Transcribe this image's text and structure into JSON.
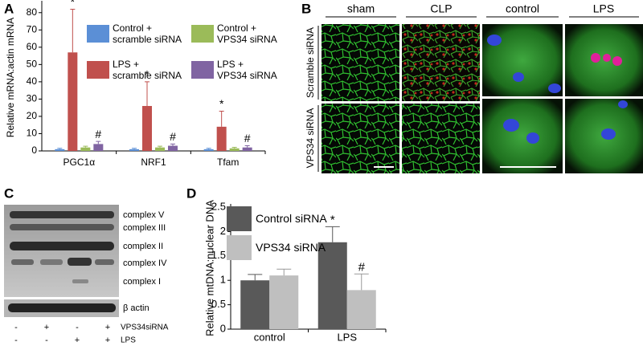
{
  "panel_labels": [
    "A",
    "B",
    "C",
    "D"
  ],
  "chart_data": [
    {
      "type": "bar",
      "ylabel": "Relative mRNA:actin mRNA",
      "categories": [
        "PGC1α",
        "NRF1",
        "Tfam"
      ],
      "ylim": [
        0,
        85
      ],
      "yticks": [
        0,
        10,
        20,
        30,
        40,
        50,
        60,
        70,
        80
      ],
      "series": [
        {
          "name": "Control +\nscramble siRNA",
          "color": "#5b8fd6",
          "values": [
            1,
            1,
            1
          ],
          "errors": [
            0.5,
            0.5,
            0.5
          ]
        },
        {
          "name": "LPS +\nscramble siRNA",
          "color": "#c0504d",
          "values": [
            57,
            26,
            14
          ],
          "errors": [
            25,
            14,
            9
          ],
          "annotations": [
            "*",
            "*",
            "*"
          ]
        },
        {
          "name": "Control +\nVPS34 siRNA",
          "color": "#9bbb59",
          "values": [
            2,
            2,
            1.5
          ],
          "errors": [
            0.7,
            0.7,
            0.6
          ]
        },
        {
          "name": "LPS +\nVPS34 siRNA",
          "color": "#8064a2",
          "values": [
            4,
            3,
            2
          ],
          "errors": [
            1.5,
            1,
            1
          ],
          "annotations": [
            "#",
            "#",
            "#"
          ]
        }
      ]
    },
    {
      "type": "bar",
      "ylabel": "Relative mtDNA:nuclear DNA",
      "categories": [
        "control",
        "LPS"
      ],
      "ylim": [
        0,
        2.5
      ],
      "yticks": [
        0,
        0.5,
        1,
        1.5,
        2,
        2.5
      ],
      "series": [
        {
          "name": "Control siRNA",
          "color": "#595959",
          "values": [
            1.0,
            1.78
          ],
          "errors": [
            0.12,
            0.32
          ],
          "annotations": [
            null,
            "*"
          ]
        },
        {
          "name": "VPS34 siRNA",
          "color": "#bfbfbf",
          "values": [
            1.1,
            0.8
          ],
          "errors": [
            0.13,
            0.33
          ],
          "annotations": [
            null,
            "#"
          ]
        }
      ]
    }
  ],
  "microscopy": {
    "tissue_columns": [
      "sham",
      "CLP"
    ],
    "cell_columns": [
      "control",
      "LPS"
    ],
    "rows": [
      "Scramble siRNA",
      "VPS34 siRNA"
    ]
  },
  "western_blot": {
    "bands": [
      "complex V",
      "complex III",
      "complex II",
      "complex IV",
      "complex I"
    ],
    "loading": "β actin",
    "conditions": [
      {
        "name": "VPS34siRNA",
        "signs": [
          "-",
          "+",
          "-",
          "+"
        ]
      },
      {
        "name": "LPS",
        "signs": [
          "-",
          "-",
          "+",
          "+"
        ]
      }
    ]
  }
}
